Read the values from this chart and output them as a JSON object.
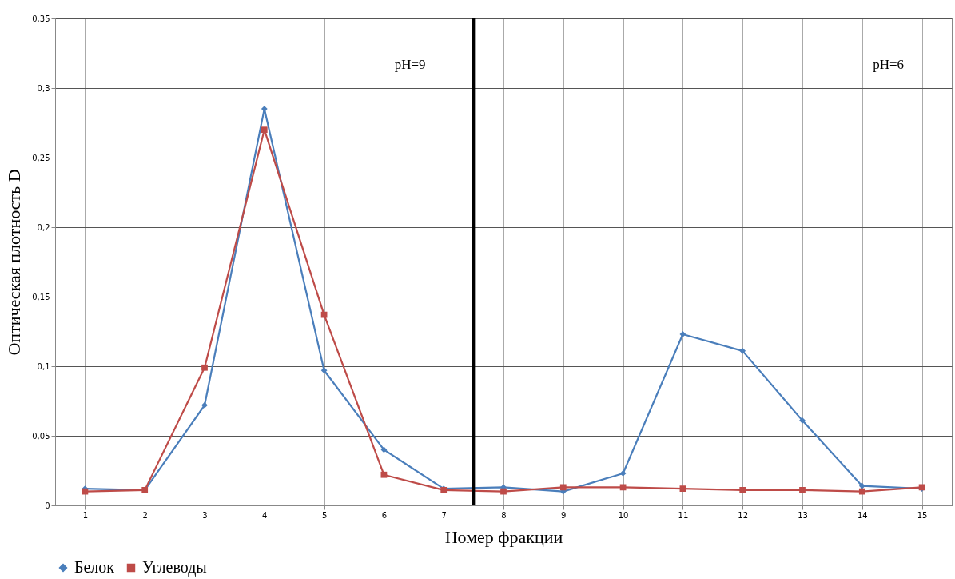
{
  "chart_data": {
    "type": "line",
    "xlabel": "Номер фракции",
    "ylabel": "Оптическая плотность D",
    "x": [
      1,
      2,
      3,
      4,
      5,
      6,
      7,
      8,
      9,
      10,
      11,
      12,
      13,
      14,
      15
    ],
    "xlim": [
      0.5,
      15.5
    ],
    "xticks": [
      1,
      2,
      3,
      4,
      5,
      6,
      7,
      8,
      9,
      10,
      11,
      12,
      13,
      14,
      15
    ],
    "ylim": [
      0,
      0.35
    ],
    "yticks": [
      {
        "value": 0,
        "label": "0"
      },
      {
        "value": 0.05,
        "label": "0,05"
      },
      {
        "value": 0.1,
        "label": "0,1"
      },
      {
        "value": 0.15,
        "label": "0,15"
      },
      {
        "value": 0.2,
        "label": "0,2"
      },
      {
        "value": 0.25,
        "label": "0,25"
      },
      {
        "value": 0.3,
        "label": "0,3"
      },
      {
        "value": 0.35,
        "label": "0,35"
      }
    ],
    "series": [
      {
        "name": "Белок",
        "color": "#4a7ebb",
        "marker": "diamond",
        "values": [
          0.012,
          0.011,
          0.072,
          0.285,
          0.097,
          0.04,
          0.012,
          0.013,
          0.01,
          0.023,
          0.123,
          0.111,
          0.061,
          0.014,
          0.012
        ]
      },
      {
        "name": "Углеводы",
        "color": "#be4b48",
        "marker": "square",
        "values": [
          0.01,
          0.011,
          0.099,
          0.27,
          0.137,
          0.022,
          0.011,
          0.01,
          0.013,
          0.013,
          0.012,
          0.011,
          0.011,
          0.01,
          0.013
        ]
      }
    ],
    "ref_lines": [
      {
        "axis": "x",
        "value": 7.5,
        "color": "#000000"
      }
    ],
    "annotations": [
      "pH=9",
      "pH=6"
    ],
    "grid": true,
    "legend": "bottom"
  }
}
